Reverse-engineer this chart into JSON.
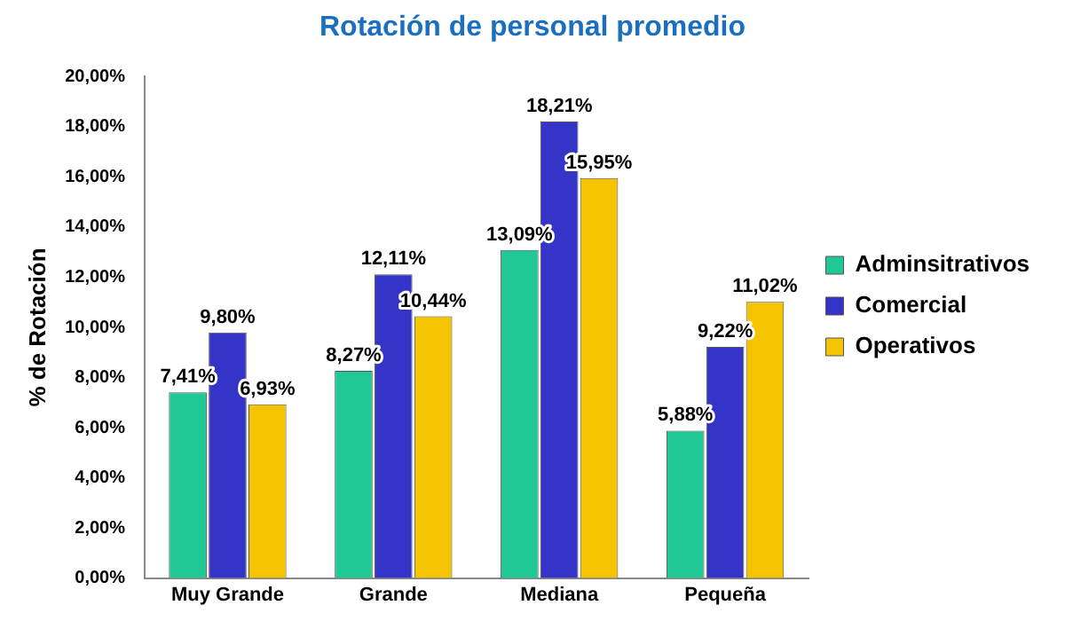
{
  "chart_data": {
    "type": "bar",
    "title": "Rotación de personal promedio",
    "ylabel": "% de Rotación",
    "categories": [
      "Muy Grande",
      "Grande",
      "Mediana",
      "Pequeña"
    ],
    "series": [
      {
        "name": "Adminsitrativos",
        "color": "#20c896",
        "values": [
          7.41,
          8.27,
          13.09,
          5.88
        ],
        "value_labels": [
          "7,41%",
          "8,27%",
          "13,09%",
          "5,88%"
        ]
      },
      {
        "name": "Comercial",
        "color": "#3434c8",
        "values": [
          9.8,
          12.11,
          18.21,
          9.22
        ],
        "value_labels": [
          "9,80%",
          "12,11%",
          "18,21%",
          "9,22%"
        ]
      },
      {
        "name": "Operativos",
        "color": "#f5c400",
        "values": [
          6.93,
          10.44,
          15.95,
          11.02
        ],
        "value_labels": [
          "6,93%",
          "10,44%",
          "15,95%",
          "11,02%"
        ]
      }
    ],
    "ylim": [
      0,
      20
    ],
    "yticks": [
      {
        "value": 0,
        "label": "0,00%"
      },
      {
        "value": 2,
        "label": "2,00%"
      },
      {
        "value": 4,
        "label": "4,00%"
      },
      {
        "value": 6,
        "label": "6,00%"
      },
      {
        "value": 8,
        "label": "8,00%"
      },
      {
        "value": 10,
        "label": "10,00%"
      },
      {
        "value": 12,
        "label": "12,00%"
      },
      {
        "value": 14,
        "label": "14,00%"
      },
      {
        "value": 16,
        "label": "16,00%"
      },
      {
        "value": 18,
        "label": "18,00%"
      },
      {
        "value": 20,
        "label": "20,00%"
      }
    ],
    "grid": false,
    "legend": "right"
  }
}
